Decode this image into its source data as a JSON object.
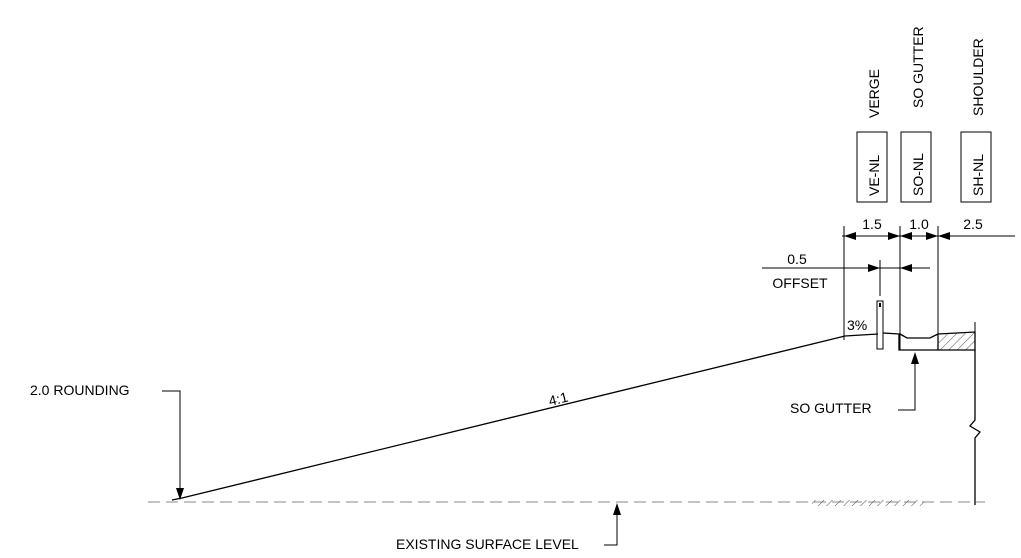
{
  "columns": [
    {
      "key": "verge",
      "title": "VERGE",
      "code": "VE-NL",
      "width": "1.5"
    },
    {
      "key": "so-gutter",
      "title": "SO GUTTER",
      "code": "SO-NL",
      "width": "1.0"
    },
    {
      "key": "shoulder",
      "title": "SHOULDER",
      "code": "SH-NL",
      "width": "2.5"
    }
  ],
  "offset": {
    "value": "0.5",
    "label": "OFFSET"
  },
  "labels": {
    "slope_ratio": "4:1",
    "cross_fall": "3%",
    "rounding": "2.0 ROUNDING",
    "gutter_callout": "SO GUTTER",
    "existing_surface": "EXISTING SURFACE LEVEL"
  }
}
